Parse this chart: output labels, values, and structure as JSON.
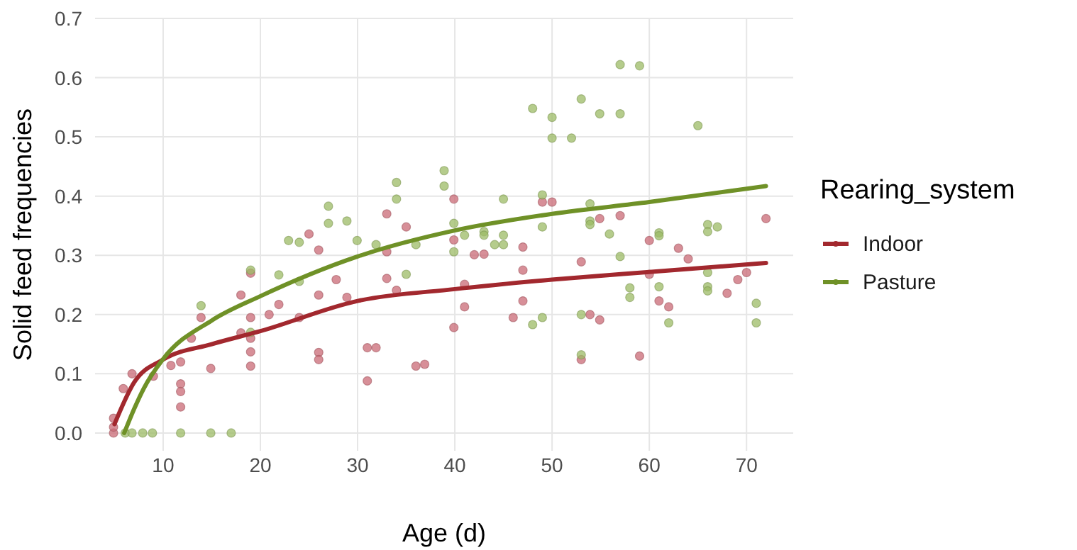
{
  "chart_data": {
    "type": "scatter",
    "xlabel": "Age (d)",
    "ylabel": "Solid feed frequencies",
    "legend_title": "Rearing_system",
    "legend": "right",
    "grid": true,
    "xlim": [
      3,
      74.8
    ],
    "ylim": [
      -0.03,
      0.7
    ],
    "xticks": [
      10,
      20,
      30,
      40,
      50,
      60,
      70
    ],
    "yticks": [
      {
        "value": 0,
        "label": "0.0"
      },
      0.1,
      0.2,
      0.3,
      0.4,
      0.5,
      0.6,
      0.7
    ],
    "series": [
      {
        "marker": "circle",
        "color": "#c96a76",
        "x": [
          4.9,
          4.9,
          4.9,
          5.9,
          6.8,
          9,
          10.8,
          11.8,
          11.8,
          11.8,
          11.8,
          13.9,
          12.9,
          14.9,
          18,
          18,
          19,
          19,
          19,
          19,
          19,
          21.9,
          20.9,
          24,
          25,
          26,
          26,
          26,
          26,
          27.8,
          28.9,
          31,
          31,
          31.9,
          33,
          33,
          33,
          34,
          35,
          36,
          36.9,
          39.9,
          39.9,
          39.9,
          41,
          41,
          42,
          43,
          46,
          47,
          47,
          47,
          49,
          50,
          53,
          53,
          53.9,
          54.9,
          54.9,
          57,
          59,
          60,
          60,
          61,
          62,
          63,
          64,
          68,
          69.1,
          70,
          72
        ],
        "values": [
          0,
          0.01,
          0.025,
          0.075,
          0.1,
          0.096,
          0.114,
          0.12,
          0.083,
          0.07,
          0.044,
          0.195,
          0.16,
          0.109,
          0.233,
          0.169,
          0.16,
          0.137,
          0.113,
          0.27,
          0.195,
          0.217,
          0.2,
          0.195,
          0.336,
          0.309,
          0.233,
          0.136,
          0.124,
          0.259,
          0.229,
          0.088,
          0.144,
          0.144,
          0.37,
          0.306,
          0.261,
          0.241,
          0.348,
          0.113,
          0.116,
          0.395,
          0.326,
          0.178,
          0.251,
          0.213,
          0.301,
          0.302,
          0.195,
          0.314,
          0.275,
          0.223,
          0.39,
          0.39,
          0.289,
          0.124,
          0.2,
          0.362,
          0.191,
          0.367,
          0.13,
          0.325,
          0.268,
          0.223,
          0.213,
          0.312,
          0.294,
          0.236,
          0.259,
          0.271,
          0.362
        ]
      },
      {
        "marker": "circle",
        "color": "#9cbb66",
        "x": [
          6.1,
          6.8,
          7.9,
          8.9,
          11.8,
          14.9,
          17,
          13.9,
          19,
          19,
          21.9,
          22.9,
          24,
          24,
          27,
          27,
          28.9,
          29.95,
          31.9,
          34,
          34,
          35,
          36,
          38.9,
          38.9,
          39.9,
          39.9,
          41,
          43,
          43,
          44.1,
          45,
          45,
          45,
          48,
          48,
          49,
          49,
          49,
          50,
          50,
          52,
          53,
          53,
          53,
          53.9,
          53.9,
          53.9,
          54.9,
          55.9,
          57,
          59,
          57,
          65,
          57,
          58,
          58,
          61,
          61,
          61,
          62,
          66,
          66,
          67,
          66,
          66,
          66,
          71,
          71
        ],
        "values": [
          0,
          0,
          0,
          0,
          0,
          0,
          0,
          0.215,
          0.275,
          0.17,
          0.267,
          0.325,
          0.322,
          0.256,
          0.383,
          0.354,
          0.358,
          0.325,
          0.318,
          0.423,
          0.395,
          0.268,
          0.318,
          0.443,
          0.417,
          0.354,
          0.306,
          0.334,
          0.34,
          0.334,
          0.318,
          0.395,
          0.334,
          0.318,
          0.548,
          0.183,
          0.402,
          0.348,
          0.195,
          0.533,
          0.498,
          0.498,
          0.564,
          0.2,
          0.132,
          0.387,
          0.358,
          0.352,
          0.539,
          0.336,
          0.622,
          0.62,
          0.539,
          0.519,
          0.298,
          0.245,
          0.229,
          0.338,
          0.333,
          0.247,
          0.186,
          0.352,
          0.34,
          0.348,
          0.271,
          0.247,
          0.24,
          0.219,
          0.186
        ]
      },
      {
        "type": "line",
        "marker": "none",
        "name": "Indoor",
        "color": "#a2282e",
        "x": [
          5,
          7,
          10,
          15,
          20,
          30,
          40,
          50,
          60,
          72
        ],
        "values": [
          0.015,
          0.085,
          0.124,
          0.15,
          0.172,
          0.223,
          0.243,
          0.259,
          0.272,
          0.287
        ]
      },
      {
        "type": "line",
        "marker": "none",
        "name": "Pasture",
        "color": "#6f9127",
        "x": [
          6,
          7,
          8,
          10,
          15,
          20,
          30,
          40,
          50,
          60,
          72
        ],
        "values": [
          0,
          0.04,
          0.075,
          0.125,
          0.19,
          0.231,
          0.298,
          0.342,
          0.37,
          0.39,
          0.417
        ]
      }
    ]
  }
}
